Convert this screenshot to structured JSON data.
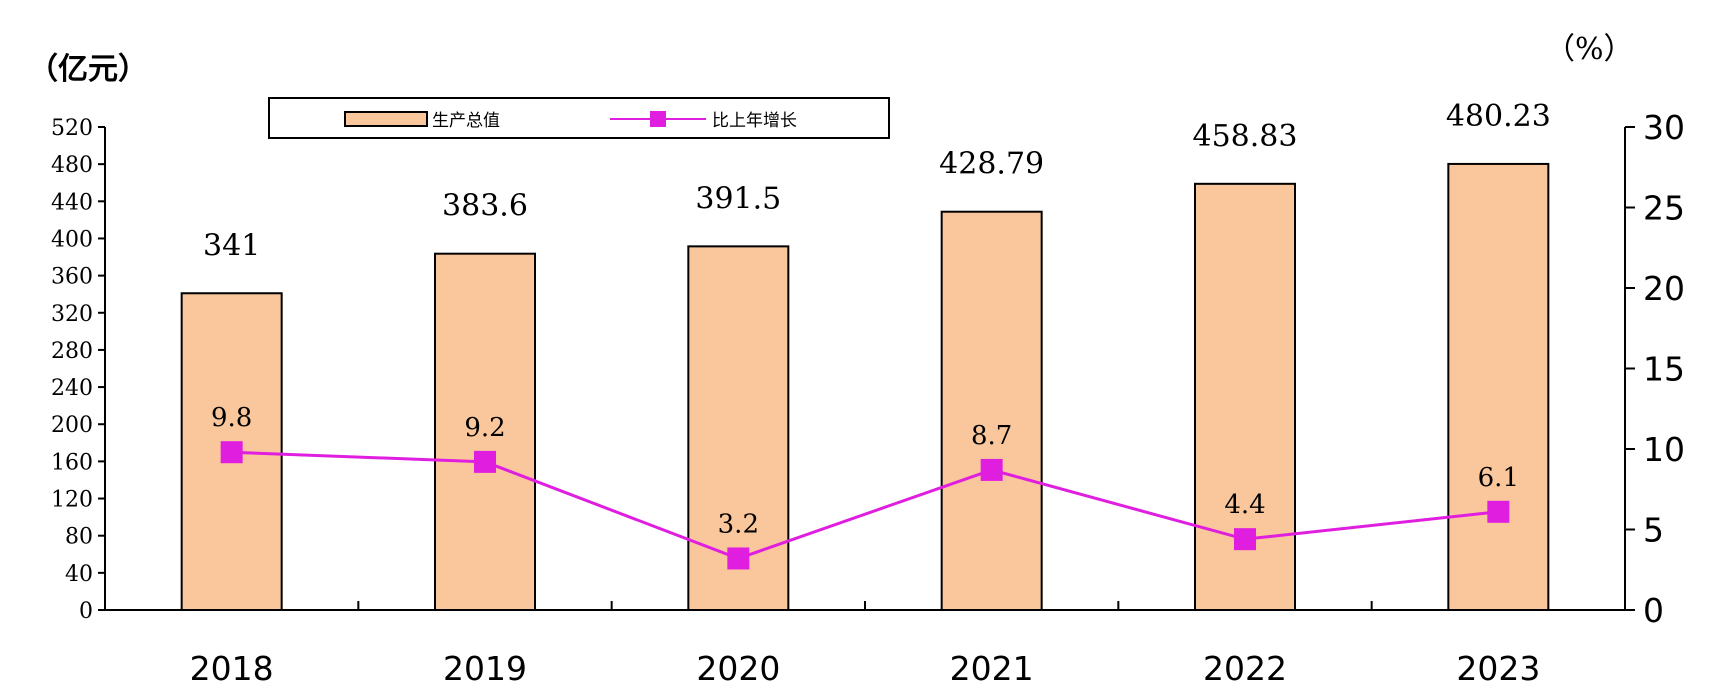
{
  "chart_data": {
    "type": "bar",
    "categories": [
      "2018",
      "2019",
      "2020",
      "2021",
      "2022",
      "2023"
    ],
    "series": [
      {
        "name": "生产总值",
        "axis": "left",
        "type": "bar",
        "values": [
          341,
          383.6,
          391.5,
          428.79,
          458.83,
          480.23
        ],
        "labels": [
          "341",
          "383.6",
          "391.5",
          "428.79",
          "458.83",
          "480.23"
        ]
      },
      {
        "name": "比上年增长",
        "axis": "right",
        "type": "line",
        "values": [
          9.8,
          9.2,
          3.2,
          8.7,
          4.4,
          6.1
        ],
        "labels": [
          "9.8",
          "9.2",
          "3.2",
          "8.7",
          "4.4",
          "6.1"
        ]
      }
    ],
    "ylabel": "（亿元）",
    "y2label": "（%）",
    "ylim": [
      0,
      520
    ],
    "y2lim": [
      0,
      30
    ],
    "yticks": [
      "0",
      "40",
      "80",
      "120",
      "160",
      "200",
      "240",
      "280",
      "320",
      "360",
      "400",
      "440",
      "480",
      "520"
    ],
    "y2ticks": [
      "0",
      "5",
      "10",
      "15",
      "20",
      "25",
      "30"
    ],
    "legend": "top",
    "grid": false,
    "colors": {
      "bar": "#f9c79b",
      "bar_border": "#000000",
      "line": "#e01ee0"
    }
  }
}
